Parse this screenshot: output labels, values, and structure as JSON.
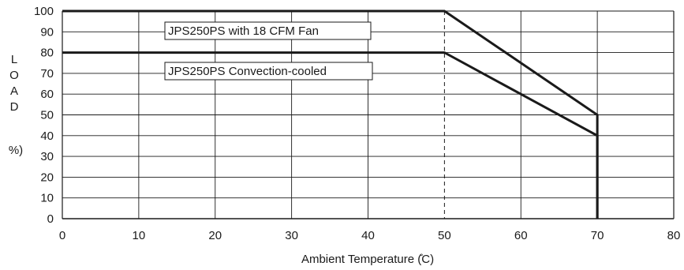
{
  "chart_data": {
    "type": "line",
    "xlabel": "Ambient Temperature (̊C)",
    "ylabel_letters": [
      "L",
      "O",
      "A",
      "D"
    ],
    "ylabel_unit": "%)",
    "xlim": [
      0,
      80
    ],
    "ylim": [
      0,
      100
    ],
    "x_ticks": [
      "0",
      "10",
      "20",
      "30",
      "40",
      "50",
      "60",
      "70",
      "80"
    ],
    "y_ticks": [
      "0",
      "10",
      "20",
      "30",
      "40",
      "50",
      "60",
      "70",
      "80",
      "90",
      "100"
    ],
    "grid": true,
    "series": [
      {
        "name": "JPS250PS with 18 CFM Fan",
        "x": [
          0,
          50,
          70,
          70
        ],
        "y": [
          100,
          100,
          50,
          0
        ]
      },
      {
        "name": "JPS250PS Convection-cooled",
        "x": [
          0,
          50,
          70,
          70
        ],
        "y": [
          80,
          80,
          40,
          0
        ]
      }
    ],
    "reference_line": {
      "x": 50,
      "style": "dashed"
    },
    "colors": {
      "series": "#1a1a1a",
      "grid": "#1a1a1a"
    }
  }
}
